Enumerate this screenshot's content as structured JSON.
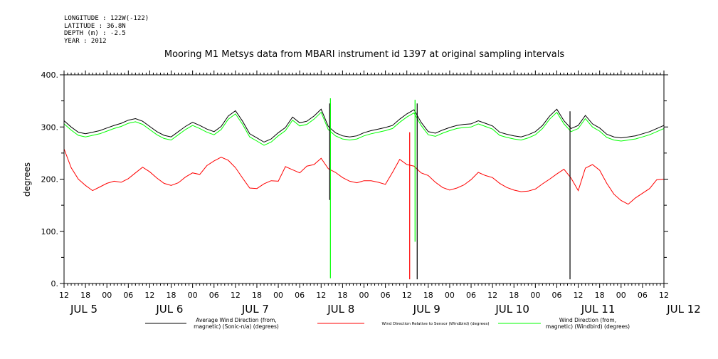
{
  "header": {
    "lines": [
      "LONGITUDE : 122W(-122)",
      "LATITUDE : 36.8N",
      "DEPTH (m) : -2.5",
      "YEAR : 2012"
    ]
  },
  "colors": {
    "average": "#000000",
    "relative": "#ff0000",
    "windbird": "#00ff00"
  },
  "chart_data": {
    "type": "line",
    "title": "Mooring M1 Metsys data from MBARI instrument id 1397 at original sampling intervals",
    "ylabel": "degrees",
    "ylim": [
      0,
      400
    ],
    "y_ticks": [
      "0.",
      "100.",
      "200.",
      "300.",
      "400."
    ],
    "xlim_hours": [
      0,
      168
    ],
    "x_ticks": [
      "12",
      "18",
      "00",
      "06",
      "12",
      "18",
      "00",
      "06",
      "12",
      "18",
      "00",
      "06",
      "12",
      "18",
      "00",
      "06",
      "12",
      "18",
      "00",
      "06",
      "12",
      "18",
      "00",
      "06",
      "12",
      "18",
      "00",
      "06",
      "12"
    ],
    "day_labels": [
      {
        "text": "JUL  5",
        "hour": 0
      },
      {
        "text": "JUL  6",
        "hour": 24
      },
      {
        "text": "JUL  7",
        "hour": 48
      },
      {
        "text": "JUL  8",
        "hour": 72
      },
      {
        "text": "JUL  9",
        "hour": 96
      },
      {
        "text": "JUL 10",
        "hour": 120
      },
      {
        "text": "JUL 11",
        "hour": 144
      },
      {
        "text": "JUL 12",
        "hour": 168
      }
    ],
    "legend_placement": "bottom",
    "series": [
      {
        "name": "Average Wind Direction (from, magnetic) (Sonic-n/a) (degrees)",
        "legend_lines": [
          "Average Wind Direction (from,",
          "magnetic) (Sonic-n/a) (degrees)"
        ],
        "color_key": "average",
        "x": [
          0,
          2,
          4,
          6,
          8,
          10,
          12,
          14,
          16,
          18,
          20,
          22,
          24,
          26,
          28,
          30,
          32,
          34,
          36,
          38,
          40,
          42,
          44,
          46,
          48,
          50,
          52,
          54,
          56,
          58,
          60,
          62,
          64,
          66,
          68,
          70,
          72,
          74,
          76,
          78,
          80,
          82,
          84,
          86,
          88,
          90,
          92,
          94,
          96,
          98,
          100,
          102,
          104,
          106,
          108,
          110,
          112,
          114,
          116,
          118,
          120,
          122,
          124,
          126,
          128,
          130,
          132,
          134,
          136,
          138,
          140,
          142,
          144,
          146,
          148,
          150,
          152,
          154,
          156,
          158,
          160,
          162,
          164,
          166,
          168
        ],
        "values": [
          312,
          300,
          290,
          287,
          290,
          293,
          298,
          303,
          307,
          313,
          316,
          311,
          301,
          291,
          284,
          281,
          291,
          301,
          309,
          303,
          296,
          291,
          301,
          321,
          331,
          311,
          287,
          279,
          271,
          277,
          289,
          299,
          319,
          308,
          311,
          321,
          334,
          301,
          289,
          283,
          281,
          283,
          289,
          293,
          296,
          299,
          303,
          315,
          325,
          333,
          309,
          291,
          288,
          294,
          299,
          303,
          305,
          306,
          312,
          307,
          302,
          290,
          286,
          283,
          281,
          285,
          291,
          303,
          321,
          334,
          312,
          297,
          303,
          322,
          306,
          298,
          286,
          281,
          279,
          281,
          283,
          287,
          291,
          297,
          303
        ]
      },
      {
        "name": "Wind Direction Relative to Sensor (Windbird) (degrees)",
        "legend_lines": [
          "Wind Direction Relative to Sensor (Windbird) (degrees)"
        ],
        "color_key": "relative",
        "x": [
          0,
          2,
          4,
          6,
          8,
          10,
          12,
          14,
          16,
          18,
          20,
          22,
          24,
          26,
          28,
          30,
          32,
          34,
          36,
          38,
          40,
          42,
          44,
          46,
          48,
          50,
          52,
          54,
          56,
          58,
          60,
          62,
          64,
          66,
          68,
          70,
          72,
          74,
          76,
          78,
          80,
          82,
          84,
          86,
          88,
          90,
          92,
          94,
          96,
          98,
          100,
          102,
          104,
          106,
          108,
          110,
          112,
          114,
          116,
          118,
          120,
          122,
          124,
          126,
          128,
          130,
          132,
          134,
          136,
          138,
          140,
          142,
          144,
          146,
          148,
          150,
          152,
          154,
          156,
          158,
          160,
          162,
          164,
          166,
          168
        ],
        "values": [
          258,
          222,
          200,
          188,
          178,
          185,
          192,
          196,
          194,
          201,
          212,
          223,
          214,
          202,
          192,
          188,
          193,
          204,
          212,
          209,
          226,
          235,
          242,
          236,
          222,
          202,
          183,
          182,
          191,
          197,
          196,
          224,
          218,
          212,
          225,
          228,
          240,
          220,
          213,
          203,
          196,
          193,
          197,
          197,
          194,
          190,
          213,
          238,
          228,
          225,
          212,
          207,
          194,
          184,
          179,
          183,
          189,
          199,
          213,
          207,
          203,
          192,
          184,
          179,
          176,
          177,
          181,
          191,
          200,
          210,
          219,
          202,
          178,
          221,
          228,
          217,
          192,
          171,
          159,
          152,
          164,
          173,
          182,
          199,
          200
        ]
      },
      {
        "name": "Wind Direction (from, magnetic) (Windbird) (degrees)",
        "legend_lines": [
          "Wind Direction (from,",
          "magnetic) (Windbird) (degrees)"
        ],
        "color_key": "windbird",
        "x": [
          0,
          2,
          4,
          6,
          8,
          10,
          12,
          14,
          16,
          18,
          20,
          22,
          24,
          26,
          28,
          30,
          32,
          34,
          36,
          38,
          40,
          42,
          44,
          46,
          48,
          50,
          52,
          54,
          56,
          58,
          60,
          62,
          64,
          66,
          68,
          70,
          72,
          74,
          76,
          78,
          80,
          82,
          84,
          86,
          88,
          90,
          92,
          94,
          96,
          98,
          100,
          102,
          104,
          106,
          108,
          110,
          112,
          114,
          116,
          118,
          120,
          122,
          124,
          126,
          128,
          130,
          132,
          134,
          136,
          138,
          140,
          142,
          144,
          146,
          148,
          150,
          152,
          154,
          156,
          158,
          160,
          162,
          164,
          166,
          168
        ],
        "values": [
          306,
          294,
          284,
          281,
          284,
          287,
          292,
          297,
          301,
          307,
          310,
          305,
          295,
          285,
          278,
          275,
          285,
          295,
          303,
          297,
          290,
          285,
          295,
          315,
          325,
          305,
          281,
          273,
          265,
          271,
          283,
          293,
          313,
          302,
          305,
          315,
          328,
          295,
          283,
          277,
          275,
          277,
          283,
          287,
          290,
          293,
          297,
          309,
          319,
          327,
          303,
          285,
          282,
          288,
          293,
          297,
          299,
          300,
          306,
          301,
          296,
          284,
          280,
          277,
          275,
          279,
          285,
          297,
          315,
          328,
          306,
          291,
          297,
          316,
          300,
          292,
          280,
          275,
          273,
          275,
          277,
          281,
          285,
          291,
          297
        ]
      }
    ],
    "spikes": [
      {
        "color_key": "windbird",
        "hour": 74.6,
        "low": 10,
        "high": 355
      },
      {
        "color_key": "average",
        "hour": 74.4,
        "low": 160,
        "high": 345
      },
      {
        "color_key": "relative",
        "hour": 96.8,
        "low": 8,
        "high": 290
      },
      {
        "color_key": "average",
        "hour": 98.9,
        "low": 8,
        "high": 345
      },
      {
        "color_key": "windbird",
        "hour": 98.3,
        "low": 80,
        "high": 352
      },
      {
        "color_key": "average",
        "hour": 141.7,
        "low": 8,
        "high": 330
      }
    ]
  }
}
